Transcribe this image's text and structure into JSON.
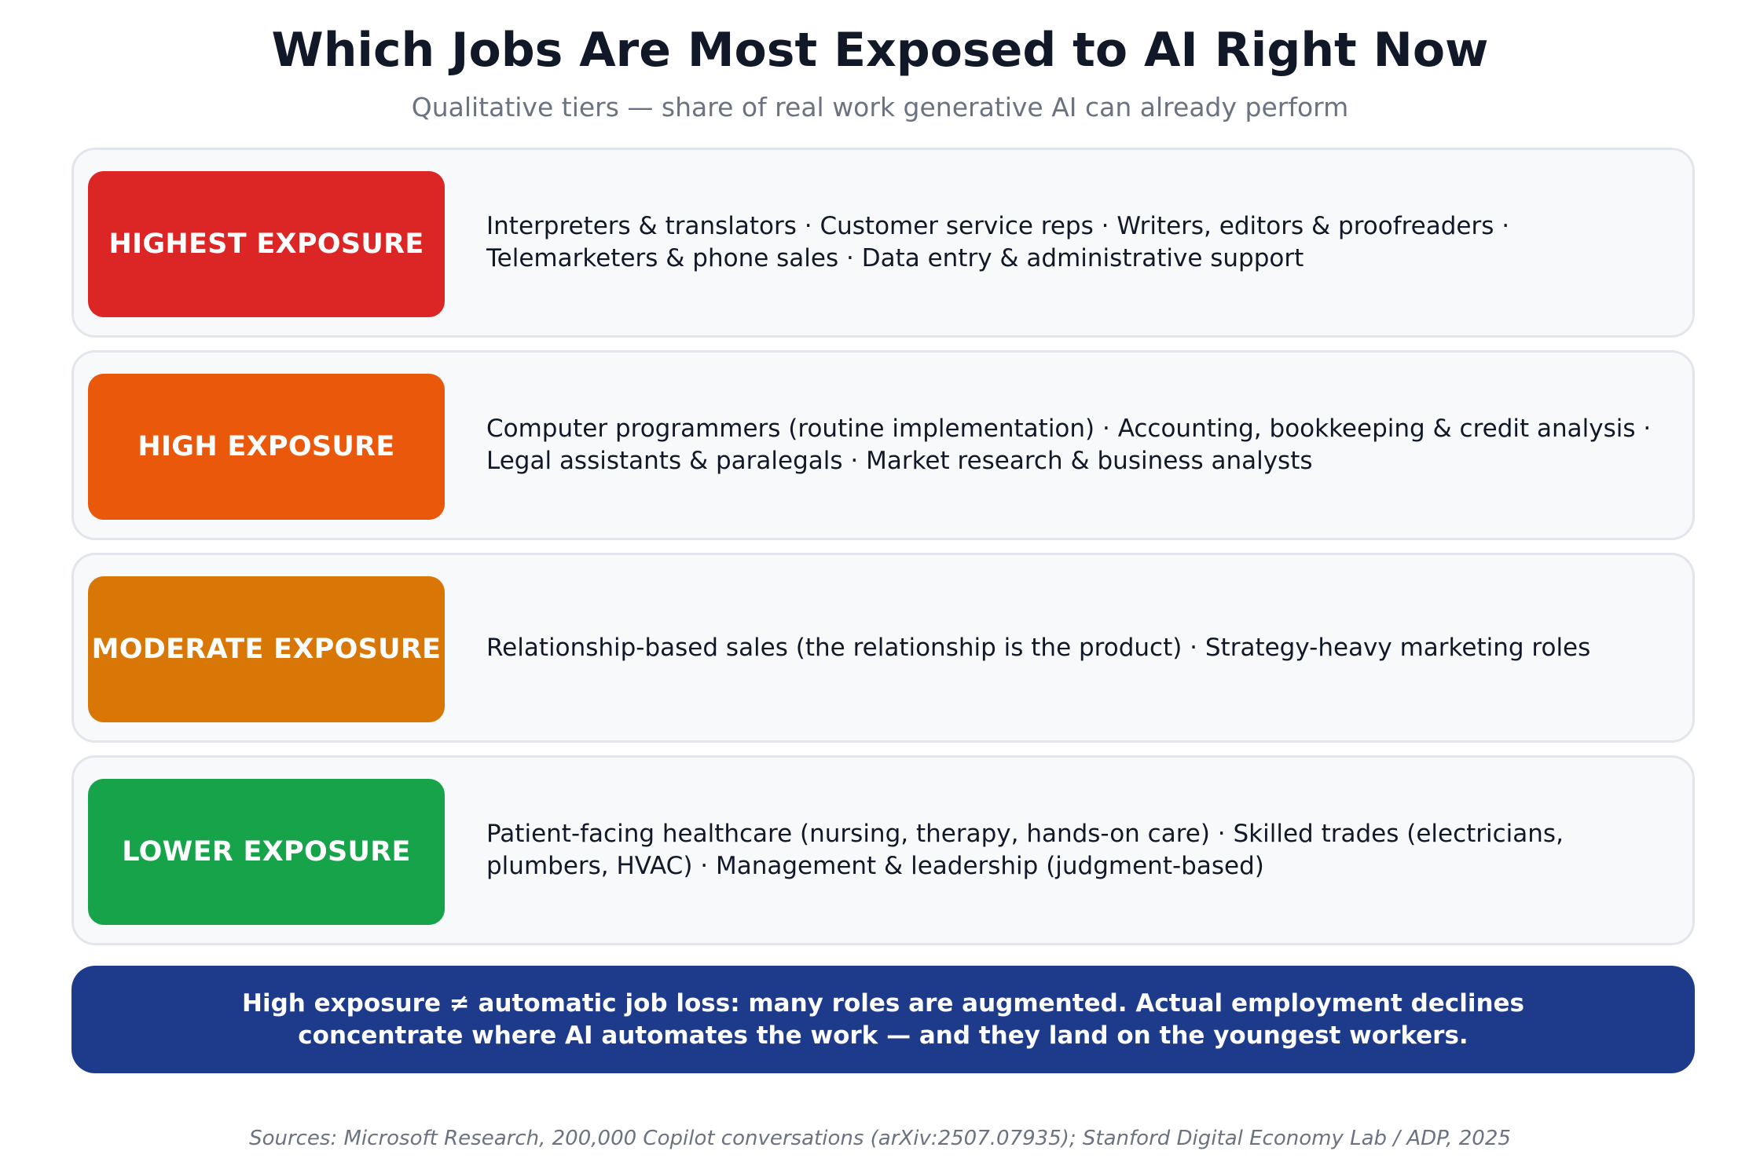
{
  "header": {
    "title": "Which Jobs Are Most Exposed to AI Right Now",
    "subtitle": "Qualitative tiers — share of real work generative AI can already perform"
  },
  "tiers": [
    {
      "label": "HIGHEST EXPOSURE",
      "color": "#dc2626",
      "jobs": "Interpreters & translators · Customer service reps · Writers, editors & proofreaders · Telemarketers & phone sales · Data entry & administrative support"
    },
    {
      "label": "HIGH EXPOSURE",
      "color": "#ea580c",
      "jobs": "Computer programmers (routine implementation) · Accounting, bookkeeping & credit analysis · Legal assistants & paralegals · Market research & business analysts"
    },
    {
      "label": "MODERATE EXPOSURE",
      "color": "#d97706",
      "jobs": "Relationship-based sales (the relationship is the product) · Strategy-heavy marketing roles"
    },
    {
      "label": "LOWER EXPOSURE",
      "color": "#16a34a",
      "jobs": "Patient-facing healthcare (nursing, therapy, hands-on care) · Skilled trades (electricians, plumbers, HVAC) · Management & leadership (judgment-based)"
    }
  ],
  "callout": {
    "text": "High exposure ≠ automatic job loss: many roles are augmented. Actual employment declines concentrate where AI automates the work — and they land on the youngest workers.",
    "color": "#1e3a8a"
  },
  "footer": {
    "sources": "Sources: Microsoft Research, 200,000 Copilot conversations (arXiv:2507.07935); Stanford Digital Economy Lab / ADP, 2025"
  }
}
